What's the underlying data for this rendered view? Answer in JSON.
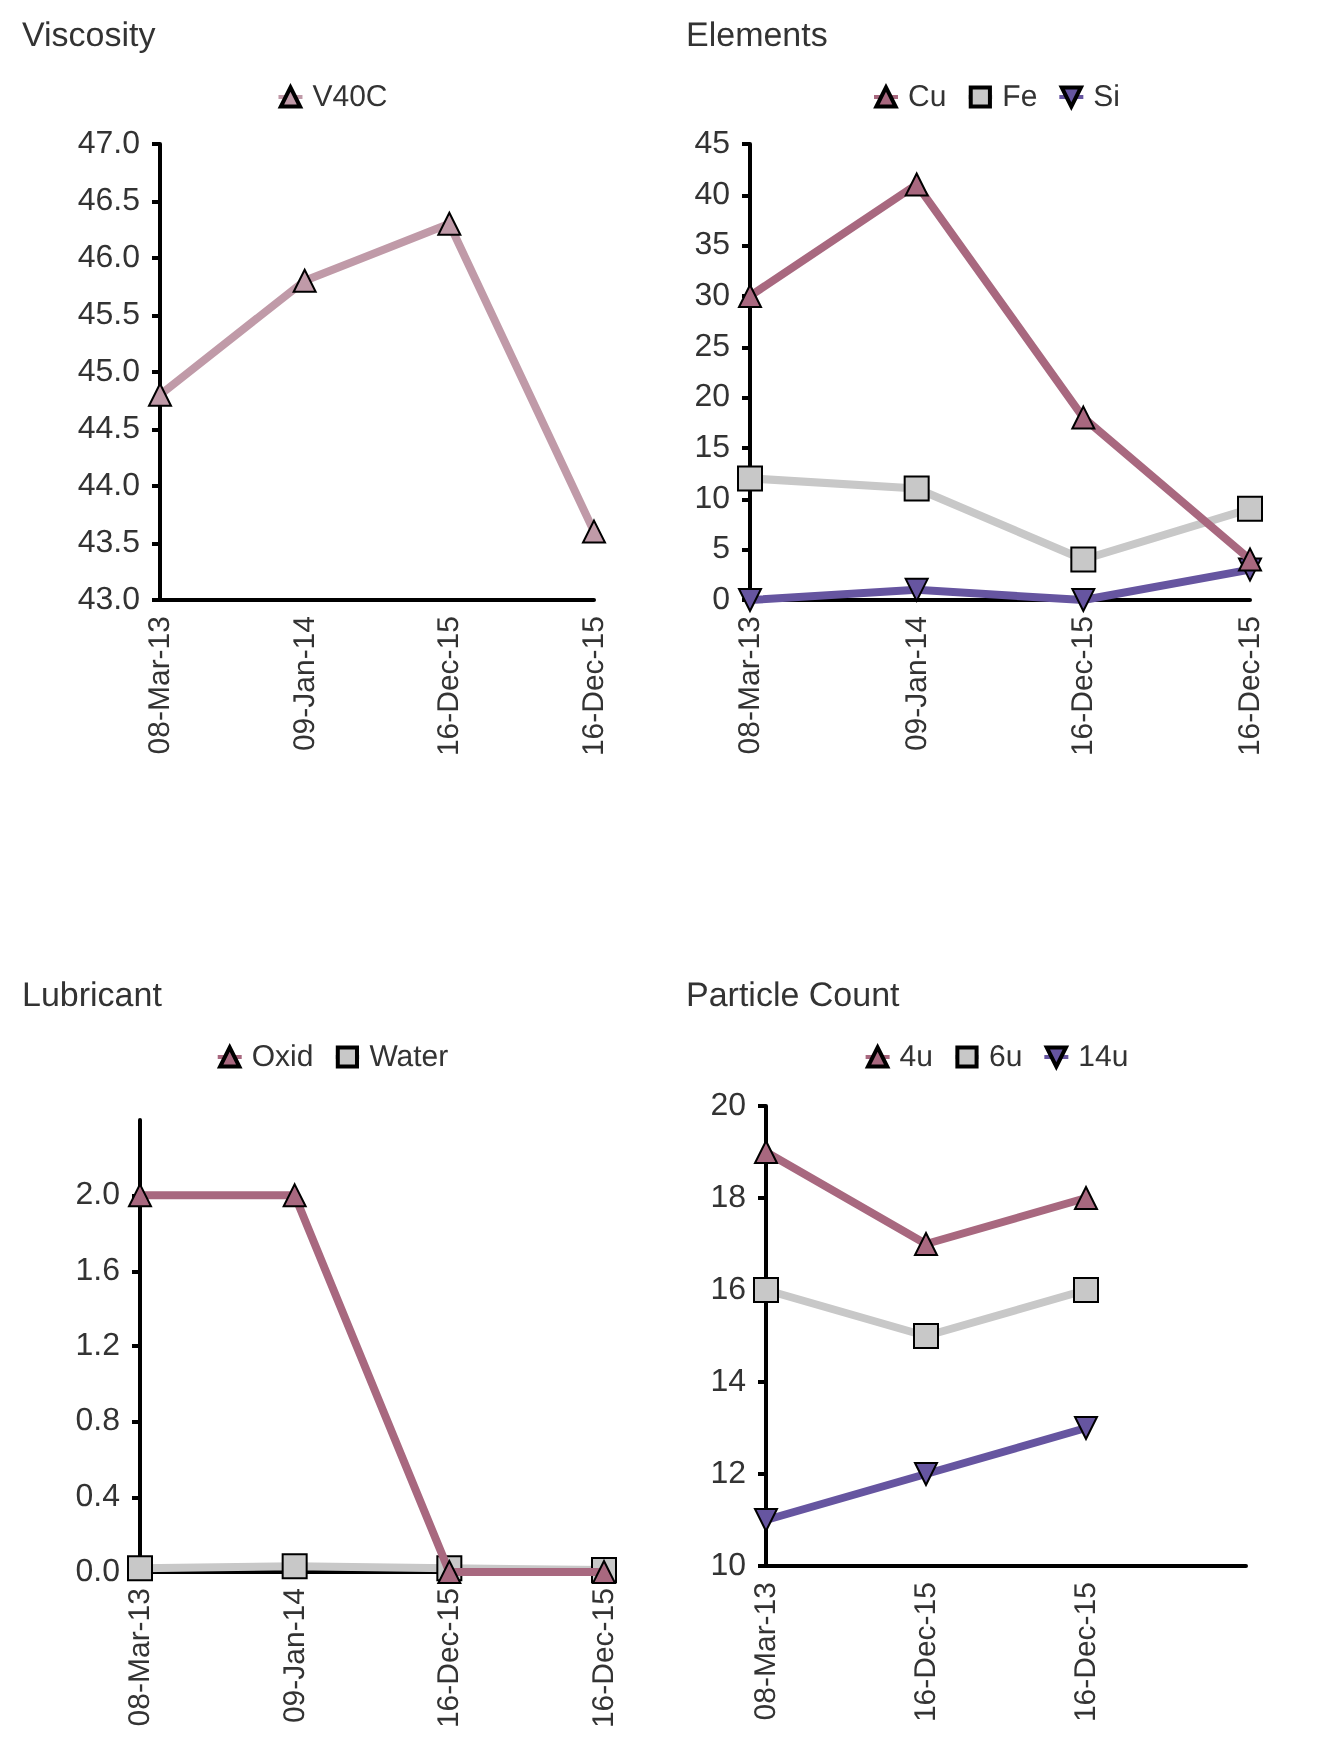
{
  "chart_data": [
    {
      "type": "line",
      "title": "Viscosity",
      "categories": [
        "08-Mar-13",
        "09-Jan-14",
        "16-Dec-15",
        "16-Dec-15"
      ],
      "ylim": [
        43.0,
        47.0
      ],
      "yticks": [
        {
          "value": 43,
          "label": "43.0"
        },
        {
          "value": 43.5,
          "label": "43.5"
        },
        {
          "value": 44,
          "label": "44.0"
        },
        {
          "value": 44.5,
          "label": "44.5"
        },
        {
          "value": 45,
          "label": "45.0"
        },
        {
          "value": 45.5,
          "label": "45.5"
        },
        {
          "value": 46,
          "label": "46.0"
        },
        {
          "value": 46.5,
          "label": "46.5"
        },
        {
          "value": 47,
          "label": "47.0"
        }
      ],
      "grid": false,
      "legend": "top",
      "series": [
        {
          "name": "V40C",
          "color": "#c09aa8",
          "marker": "triangle",
          "values": [
            44.8,
            45.8,
            46.3,
            43.6
          ]
        }
      ]
    },
    {
      "type": "line",
      "title": "Elements",
      "categories": [
        "08-Mar-13",
        "09-Jan-14",
        "16-Dec-15",
        "16-Dec-15"
      ],
      "ylim": [
        0,
        45
      ],
      "yticks": [
        0,
        5,
        10,
        15,
        20,
        25,
        30,
        35,
        40,
        45
      ],
      "grid": false,
      "legend": "top",
      "series": [
        {
          "name": "Cu",
          "color": "#a8687f",
          "marker": "triangle",
          "values": [
            30,
            41,
            18,
            4
          ]
        },
        {
          "name": "Fe",
          "color": "#c8c8c8",
          "marker": "square",
          "values": [
            12,
            11,
            4,
            9
          ]
        },
        {
          "name": "Si",
          "color": "#6655a0",
          "marker": "triangle-down",
          "values": [
            0,
            1,
            0,
            3
          ]
        }
      ]
    },
    {
      "type": "line",
      "title": "Lubricant",
      "categories": [
        "08-Mar-13",
        "09-Jan-14",
        "16-Dec-15",
        "16-Dec-15"
      ],
      "ylim": [
        0,
        2.4
      ],
      "yticks": [
        {
          "value": 0,
          "label": "0.0"
        },
        {
          "value": 0.4,
          "label": "0.4"
        },
        {
          "value": 0.8,
          "label": "0.8"
        },
        {
          "value": 1.2,
          "label": "1.2"
        },
        {
          "value": 1.6,
          "label": "1.6"
        },
        {
          "value": 2,
          "label": "2.0"
        }
      ],
      "grid": false,
      "legend": "top",
      "series": [
        {
          "name": "Oxid",
          "color": "#a8687f",
          "marker": "triangle",
          "values": [
            2.0,
            2.0,
            0,
            0
          ]
        },
        {
          "name": "Water",
          "color": "#c8c8c8",
          "marker": "square",
          "values": [
            0.02,
            0.03,
            0.02,
            0.01
          ]
        }
      ]
    },
    {
      "type": "line",
      "title": "Particle Count",
      "categories": [
        "08-Mar-13",
        "16-Dec-15",
        "16-Dec-15",
        null
      ],
      "ylim": [
        10,
        20
      ],
      "yticks": [
        10,
        12,
        14,
        16,
        18,
        20
      ],
      "grid": false,
      "legend": "top",
      "series": [
        {
          "name": "4u",
          "color": "#a8687f",
          "marker": "triangle",
          "values": [
            19,
            17,
            18,
            null
          ]
        },
        {
          "name": "6u",
          "color": "#c8c8c8",
          "marker": "square",
          "values": [
            16,
            15,
            16,
            null
          ]
        },
        {
          "name": "14u",
          "color": "#6655a0",
          "marker": "triangle-down",
          "values": [
            11,
            12,
            13,
            null
          ]
        }
      ]
    }
  ]
}
